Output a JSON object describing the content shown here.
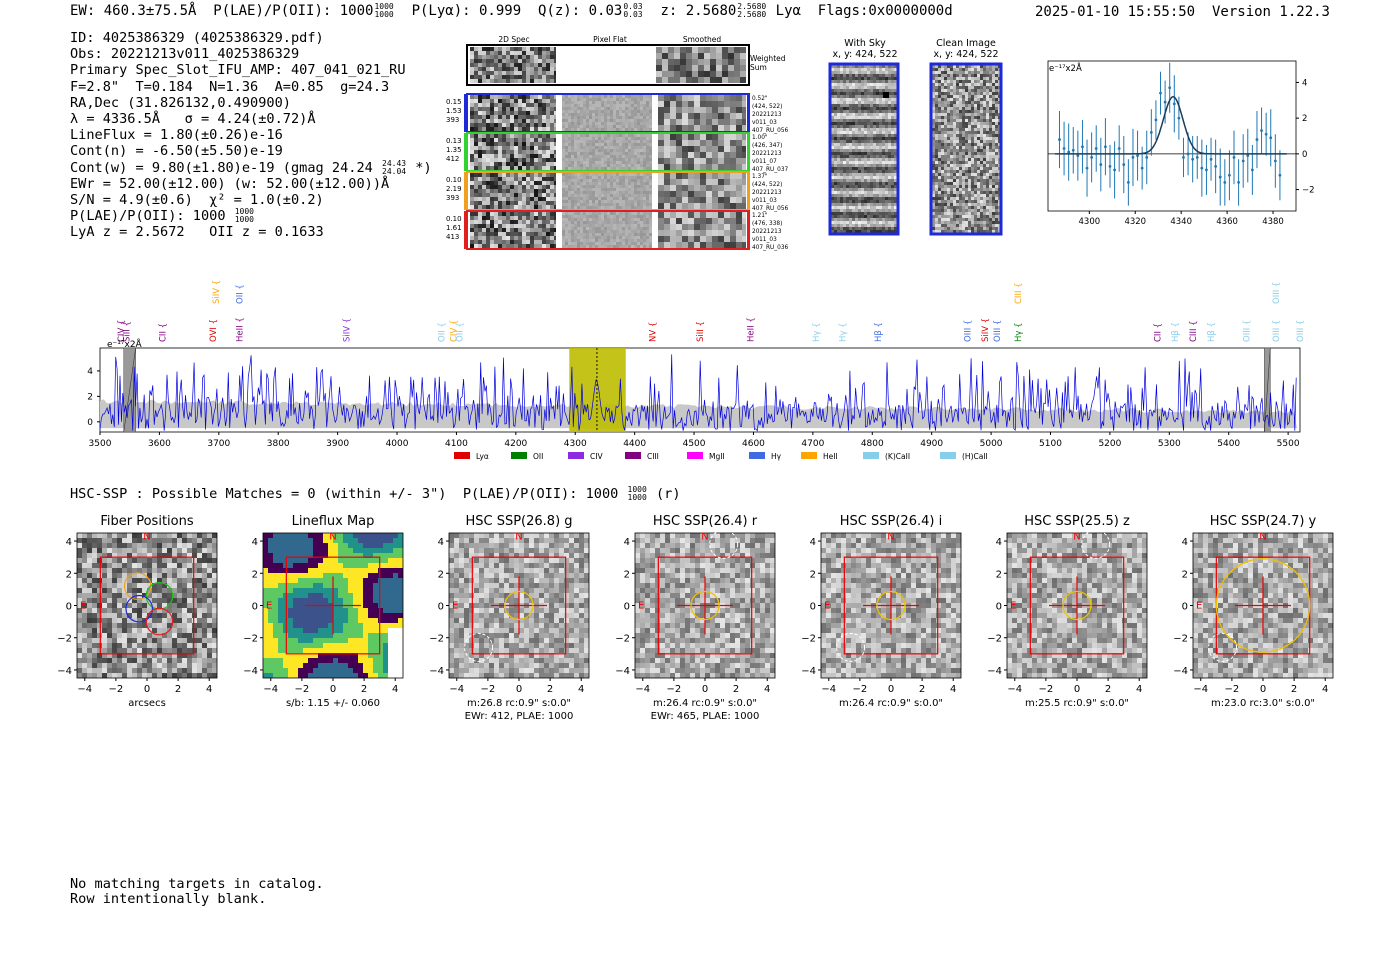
{
  "header": {
    "ew": "EW: 460.3±75.5Å",
    "plae_label": "P(LAE)/P(OII): 1000",
    "plae_hi": "1000",
    "plae_lo": "1000",
    "plya": "P(Lyα): 0.999",
    "qz_label": "Q(z): 0.03",
    "qz_hi": "0.03",
    "qz_lo": "0.03",
    "z_label": "z: 2.5680",
    "z_hi": "2.5680",
    "z_lo": "2.5680",
    "line": "Lyα",
    "flags": "Flags:0x0000000d",
    "timestamp": "2025-01-10 15:55:50",
    "version": "Version 1.22.3"
  },
  "info": {
    "id": "ID: 4025386329 (4025386329.pdf)",
    "obs": "Obs: 20221213v011_4025386329",
    "primary": "Primary Spec_Slot_IFU_AMP: 407_041_021_RU",
    "params": "F=2.8\"  T=0.184  N=1.36  A=0.85  g=24.3",
    "radec": "RA,Dec (31.826132,0.490900)",
    "lambda": "λ = 4336.5Å   σ = 4.24(±0.72)Å",
    "lineflux": "LineFlux = 1.80(±0.26)e-16",
    "contn": "Cont(n) = -6.50(±5.50)e-19",
    "contw_pre": "Cont(w) = 9.80(±1.80)e-19 (gmag 24.24",
    "contw_hi": "24.43",
    "contw_lo": "24.04",
    "contw_post": "*)",
    "ewr": "EWr = 52.00(±12.00) (w: 52.00(±12.00))Å",
    "sn": "S/N = 4.9(±0.6)  χ² = 1.0(±0.2)",
    "plae_pre": "P(LAE)/P(OII): 1000",
    "plae_hi": "1000",
    "plae_lo": "1000",
    "lya_z": "LyA z = 2.5672   OII z = 0.1633"
  },
  "cutouts": {
    "col_headers": [
      "2D Spec",
      "Pixel Flat",
      "Smoothed"
    ],
    "weighted_label_1": "Weighted",
    "weighted_label_2": "Sum",
    "rows": [
      {
        "left": [
          "0.15",
          "1.53",
          "393"
        ],
        "right": [
          "0.52\"",
          "(424, 522)",
          "20221213",
          "v011_03",
          "407_RU_056"
        ],
        "color": "#1e2ad8"
      },
      {
        "left": [
          "0.13",
          "1.35",
          "412"
        ],
        "right": [
          "1.00\"",
          "(426, 347)",
          "20221213",
          "v011_07",
          "407_RU_037"
        ],
        "color": "#32d232"
      },
      {
        "left": [
          "0.10",
          "2.19",
          "393"
        ],
        "right": [
          "1.37\"",
          "(424, 522)",
          "20221213",
          "v011_03",
          "407_RU_056"
        ],
        "color": "#f0a020"
      },
      {
        "left": [
          "0.10",
          "1.61",
          "413"
        ],
        "right": [
          "1.21\"",
          "(476, 338)",
          "20221213",
          "v011_03",
          "407_RU_036"
        ],
        "color": "#e02020"
      }
    ],
    "with_sky_title": "With Sky",
    "with_sky_xy": "x, y: 424, 522",
    "clean_title": "Clean Image",
    "clean_xy": "x, y: 424, 522"
  },
  "zoom_chart": {
    "ylabel": "e⁻¹⁷x2Å"
  },
  "spectrum": {
    "ylabel": "e⁻¹⁷x2Å"
  },
  "hsc": {
    "header": "HSC-SSP : Possible Matches = 0 (within +/- 3\")  P(LAE)/P(OII): 1000",
    "header_hi": "1000",
    "header_lo": "1000",
    "header_post": "(r)",
    "panels": [
      {
        "title": "Fiber Positions",
        "cap1": "arcsecs",
        "cap2": ""
      },
      {
        "title": "Lineflux Map",
        "cap1": "s/b: 1.15 +/- 0.060",
        "cap2": ""
      },
      {
        "title": "HSC SSP(26.8) g",
        "cap1": "m:26.8 rc:0.9\"  s:0.0\"",
        "cap2": "EWr: 412, PLAE: 1000"
      },
      {
        "title": "HSC SSP(26.4) r",
        "cap1": "m:26.4 rc:0.9\"  s:0.0\"",
        "cap2": "EWr: 465, PLAE: 1000"
      },
      {
        "title": "HSC SSP(26.4) i",
        "cap1": "m:26.4 rc:0.9\"  s:0.0\"",
        "cap2": ""
      },
      {
        "title": "HSC SSP(25.5) z",
        "cap1": "m:25.5 rc:0.9\"  s:0.0\"",
        "cap2": ""
      },
      {
        "title": "HSC SSP(24.7) y",
        "cap1": "m:23.0 rc:3.0\"  s:0.0\"",
        "cap2": ""
      }
    ],
    "compass_n": "N",
    "compass_e": "E",
    "tick_labels": [
      "4",
      "2",
      "0",
      "−2",
      "−4"
    ],
    "xtick_labels": [
      "−4",
      "−2",
      "0",
      "2",
      "4"
    ]
  },
  "footer": {
    "line1": "No matching targets in catalog.",
    "line2": "Row intentionally blank."
  },
  "chart_data": [
    {
      "type": "scatter",
      "name_hint": "emission line zoom",
      "xlim": [
        4282,
        4390
      ],
      "ylim": [
        -3.2,
        5.2
      ],
      "xticks": [
        4300,
        4320,
        4340,
        4360,
        4380
      ],
      "yticks": [
        -2,
        0,
        2,
        4
      ],
      "points": [
        [
          4287,
          0.8,
          1.6
        ],
        [
          4289,
          0.3,
          1.5
        ],
        [
          4291,
          0.1,
          1.6
        ],
        [
          4293,
          0.2,
          1.3
        ],
        [
          4295,
          -0.1,
          1.4
        ],
        [
          4297,
          0.4,
          1.5
        ],
        [
          4299,
          -0.8,
          1.6
        ],
        [
          4301,
          -0.2,
          1.4
        ],
        [
          4303,
          0.3,
          1.3
        ],
        [
          4305,
          -0.6,
          1.5
        ],
        [
          4307,
          0.4,
          1.6
        ],
        [
          4309,
          -0.7,
          1.2
        ],
        [
          4311,
          -0.9,
          1.6
        ],
        [
          4313,
          0.3,
          1.3
        ],
        [
          4315,
          -0.6,
          1.6
        ],
        [
          4317,
          -1.6,
          1.3
        ],
        [
          4319,
          -0.2,
          1.6
        ],
        [
          4321,
          -0.1,
          1.4
        ],
        [
          4323,
          -0.8,
          1.2
        ],
        [
          4325,
          -0.2,
          1.5
        ],
        [
          4327,
          1.2,
          1.3
        ],
        [
          4329,
          1.9,
          1.1
        ],
        [
          4331,
          3.4,
          1.2
        ],
        [
          4333,
          2.9,
          1.2
        ],
        [
          4335,
          3.7,
          1.4
        ],
        [
          4337,
          2.8,
          1.6
        ],
        [
          4339,
          2.0,
          1.2
        ],
        [
          4341,
          -0.2,
          1.1
        ],
        [
          4343,
          0.0,
          1.2
        ],
        [
          4345,
          -0.3,
          1.3
        ],
        [
          4347,
          -0.2,
          1.2
        ],
        [
          4349,
          -0.8,
          1.6
        ],
        [
          4351,
          -0.9,
          1.4
        ],
        [
          4353,
          -0.3,
          1.2
        ],
        [
          4355,
          -0.7,
          1.5
        ],
        [
          4357,
          -1.3,
          1.6
        ],
        [
          4359,
          -1.6,
          1.3
        ],
        [
          4361,
          -1.2,
          1.4
        ],
        [
          4363,
          -0.2,
          1.5
        ],
        [
          4365,
          -1.6,
          1.3
        ],
        [
          4367,
          -0.4,
          1.5
        ],
        [
          4369,
          -0.1,
          1.5
        ],
        [
          4371,
          -0.9,
          1.4
        ],
        [
          4373,
          0.8,
          1.6
        ],
        [
          4375,
          1.3,
          1.3
        ],
        [
          4377,
          1.1,
          1.2
        ],
        [
          4379,
          0.9,
          1.6
        ],
        [
          4381,
          -0.4,
          1.5
        ],
        [
          4383,
          -1.2,
          1.4
        ]
      ],
      "fit": {
        "center": 4336.5,
        "sigma": 4.24,
        "amplitude": 3.2,
        "baseline": 0.0
      }
    },
    {
      "type": "line",
      "name_hint": "full spectrum",
      "xlim": [
        3500,
        5520
      ],
      "ylim": [
        -0.8,
        5.8
      ],
      "xticks": [
        3500,
        3600,
        3700,
        3800,
        3900,
        4000,
        4100,
        4200,
        4300,
        4400,
        4500,
        4600,
        4700,
        4800,
        4900,
        5000,
        5100,
        5200,
        5300,
        5400,
        5500
      ],
      "yticks": [
        0,
        2,
        4
      ],
      "highlight_band": [
        4290,
        4385
      ],
      "line_center": 4336.5,
      "masked_bands": [
        [
          3540,
          3560
        ],
        [
          5460,
          5470
        ]
      ],
      "legend": [
        {
          "label": "Lyα",
          "color": "#e00000"
        },
        {
          "label": "OII",
          "color": "#008000"
        },
        {
          "label": "CIV",
          "color": "#8a2be2"
        },
        {
          "label": "CIII",
          "color": "#800080"
        },
        {
          "label": "MgII",
          "color": "#ff00ff"
        },
        {
          "label": "Hγ",
          "color": "#4169e1"
        },
        {
          "label": "HeII",
          "color": "#ffa500"
        },
        {
          "label": "(K)CaII",
          "color": "#87ceeb"
        },
        {
          "label": "(H)CaII",
          "color": "#87ceeb"
        }
      ],
      "line_markers": [
        {
          "label": "CIV",
          "x": 3535,
          "color": "#800080",
          "row": 1
        },
        {
          "label": "SiII",
          "x": 3545,
          "color": "#800080",
          "row": 1
        },
        {
          "label": "CII",
          "x": 3605,
          "color": "#800080",
          "row": 1
        },
        {
          "label": "SiIV",
          "x": 3695,
          "color": "#ffa500",
          "row": 0
        },
        {
          "label": "OII",
          "x": 3735,
          "color": "#4169e1",
          "row": 0
        },
        {
          "label": "OVI",
          "x": 3690,
          "color": "#e00000",
          "row": 1
        },
        {
          "label": "HeII",
          "x": 3735,
          "color": "#800080",
          "row": 1
        },
        {
          "label": "SiIV",
          "x": 3915,
          "color": "#8a2be2",
          "row": 1
        },
        {
          "label": "OII",
          "x": 4075,
          "color": "#87ceeb",
          "row": 1
        },
        {
          "label": "CIV",
          "x": 4095,
          "color": "#ffa500",
          "row": 1
        },
        {
          "label": "OII",
          "x": 4105,
          "color": "#87ceeb",
          "row": 1
        },
        {
          "label": "NV",
          "x": 4430,
          "color": "#e00000",
          "row": 1
        },
        {
          "label": "SiII",
          "x": 4510,
          "color": "#e00000",
          "row": 1
        },
        {
          "label": "HeII",
          "x": 4595,
          "color": "#800080",
          "row": 1
        },
        {
          "label": "Hγ",
          "x": 4705,
          "color": "#87ceeb",
          "row": 1
        },
        {
          "label": "Hγ",
          "x": 4750,
          "color": "#87ceeb",
          "row": 1
        },
        {
          "label": "Hβ",
          "x": 4810,
          "color": "#4169e1",
          "row": 1
        },
        {
          "label": "OIII",
          "x": 4960,
          "color": "#4169e1",
          "row": 1
        },
        {
          "label": "SiIV",
          "x": 4990,
          "color": "#e00000",
          "row": 1
        },
        {
          "label": "OIII",
          "x": 5010,
          "color": "#4169e1",
          "row": 1
        },
        {
          "label": "CIII",
          "x": 5045,
          "color": "#ffa500",
          "row": 0
        },
        {
          "label": "Hγ",
          "x": 5045,
          "color": "#008000",
          "row": 1
        },
        {
          "label": "CII",
          "x": 5280,
          "color": "#800080",
          "row": 1
        },
        {
          "label": "Hβ",
          "x": 5310,
          "color": "#87ceeb",
          "row": 1
        },
        {
          "label": "CIII",
          "x": 5340,
          "color": "#800080",
          "row": 1
        },
        {
          "label": "Hβ",
          "x": 5370,
          "color": "#87ceeb",
          "row": 1
        },
        {
          "label": "OIII",
          "x": 5430,
          "color": "#87ceeb",
          "row": 1
        },
        {
          "label": "OIII",
          "x": 5480,
          "color": "#87ceeb",
          "row": 0
        },
        {
          "label": "OIII",
          "x": 5480,
          "color": "#87ceeb",
          "row": 1
        },
        {
          "label": "OIII",
          "x": 5520,
          "color": "#87ceeb",
          "row": 1
        }
      ],
      "seed": 7
    }
  ]
}
